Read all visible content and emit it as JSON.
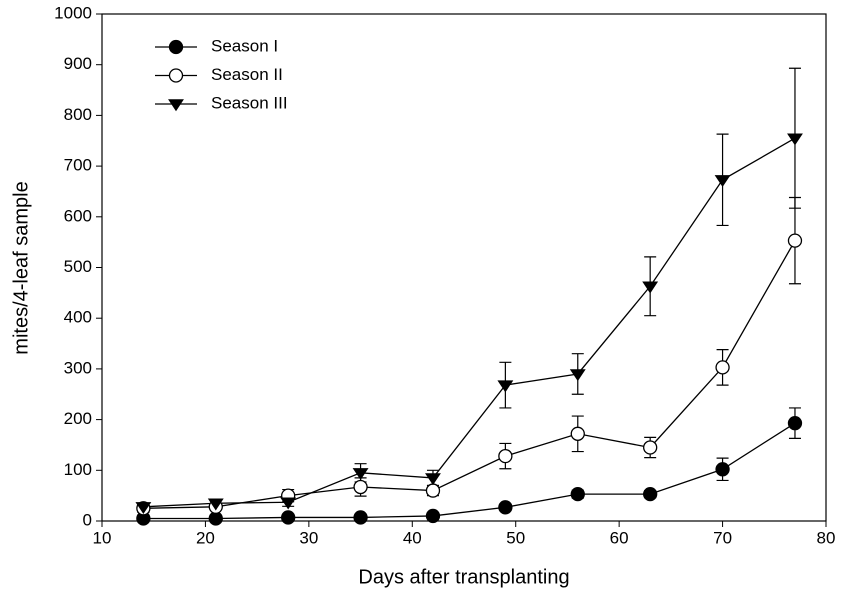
{
  "chart_data": {
    "type": "line",
    "xlabel": "Days after transplanting",
    "ylabel": "mites/4-leaf sample",
    "x": [
      14,
      21,
      28,
      35,
      42,
      49,
      56,
      63,
      70,
      77
    ],
    "series": [
      {
        "name": "Season I",
        "color": "#000000",
        "marker": "filled-circle",
        "values": [
          5,
          5,
          7,
          7,
          10,
          27,
          53,
          53,
          102,
          193
        ],
        "errors": [
          3,
          3,
          3,
          3,
          3,
          5,
          8,
          7,
          22,
          30
        ]
      },
      {
        "name": "Season II",
        "color": "#000000",
        "marker": "open-circle",
        "values": [
          25,
          28,
          50,
          67,
          60,
          128,
          172,
          145,
          303,
          553
        ],
        "errors": [
          8,
          6,
          12,
          18,
          10,
          25,
          35,
          20,
          35,
          85
        ]
      },
      {
        "name": "Season III",
        "color": "#000000",
        "marker": "down-triangle",
        "values": [
          28,
          35,
          37,
          95,
          85,
          268,
          290,
          463,
          673,
          755
        ],
        "errors": [
          5,
          5,
          8,
          18,
          15,
          45,
          40,
          58,
          90,
          138
        ]
      }
    ],
    "xlim": [
      10,
      80
    ],
    "xticks": [
      10,
      20,
      30,
      40,
      50,
      60,
      70,
      80
    ],
    "ylim": [
      0,
      1000
    ],
    "yticks": [
      0,
      100,
      200,
      300,
      400,
      500,
      600,
      700,
      800,
      900,
      1000
    ],
    "legend": "upper-left",
    "grid": false
  }
}
